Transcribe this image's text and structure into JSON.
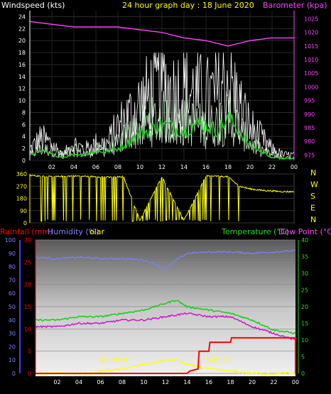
{
  "header": {
    "wind_label": "Windspeed (kts)",
    "title": "24 hour graph day : 18 June 2020",
    "baro_label": "Barometer (kpa)"
  },
  "compass": [
    "N",
    "W",
    "S",
    "E",
    "N"
  ],
  "bottom_legend": {
    "rainfall": "Rainfall (mm)",
    "humidity": "Humidity (%)",
    "solar": "olar",
    "temperature": "Temperature (°C)",
    "dewpoint": "Dew Point (°C)",
    "sunrise": "SunRise",
    "sunset": "SunSet"
  },
  "colors": {
    "wind_gust": "#ffffff",
    "wind_avg": "#c8f0c8",
    "wind_trend": "#22cc22",
    "barometer": "#ff44ff",
    "direction": "#ffff00",
    "humidity": "#7f7fff",
    "temperature": "#22cc22",
    "dewpoint": "#cc22cc",
    "rainfall": "#ff0000",
    "solar": "#ffff00"
  },
  "chart_data": [
    {
      "type": "line",
      "panel": "wind-barometer",
      "x_ticks": [
        "02",
        "04",
        "06",
        "08",
        "10",
        "12",
        "14",
        "16",
        "18",
        "20",
        "22",
        "00"
      ],
      "xlim": [
        0,
        24
      ],
      "y_left_ticks": [
        "0",
        "2",
        "4",
        "6",
        "8",
        "10",
        "12",
        "14",
        "16",
        "18",
        "20",
        "22",
        "24"
      ],
      "ylim_left": [
        0,
        25
      ],
      "y_right_ticks": [
        "975",
        "980",
        "985",
        "990",
        "995",
        "1000",
        "1005",
        "1010",
        "1015",
        "1020",
        "1025"
      ],
      "ylim_right": [
        973,
        1028
      ],
      "series": [
        {
          "key": "gust",
          "axis": "left",
          "x": [
            0,
            1,
            2,
            3,
            4,
            5,
            6,
            7,
            8,
            9,
            10,
            11,
            12,
            13,
            14,
            15,
            16,
            17,
            18,
            19,
            20,
            21,
            22,
            23,
            24
          ],
          "values": [
            2,
            4,
            3,
            1,
            3,
            2,
            3,
            3,
            6,
            8,
            10,
            12,
            14,
            12,
            13,
            12,
            11,
            12,
            15,
            10,
            6,
            4,
            2,
            1,
            1
          ]
        },
        {
          "key": "average",
          "axis": "left",
          "x": [
            0,
            1,
            2,
            3,
            4,
            5,
            6,
            7,
            8,
            9,
            10,
            11,
            12,
            13,
            14,
            15,
            16,
            17,
            18,
            19,
            20,
            21,
            22,
            23,
            24
          ],
          "values": [
            1,
            2,
            2,
            1,
            2,
            1,
            2,
            2,
            3,
            5,
            6,
            7,
            8,
            7,
            7,
            7,
            6,
            7,
            8,
            6,
            3,
            2,
            1,
            0.5,
            0.5
          ]
        },
        {
          "key": "trend",
          "axis": "left",
          "x": [
            0,
            1,
            2,
            3,
            4,
            5,
            6,
            7,
            8,
            9,
            10,
            11,
            12,
            13,
            14,
            15,
            16,
            17,
            18,
            19,
            20,
            21,
            22,
            23,
            24
          ],
          "values": [
            1,
            1.5,
            1,
            0.5,
            1,
            1,
            1.5,
            1.5,
            2,
            3,
            4.5,
            5,
            6,
            5.5,
            5,
            6,
            6,
            5,
            7,
            5,
            2.5,
            1.5,
            0.5,
            0.3,
            0.3
          ]
        },
        {
          "key": "barometer",
          "axis": "right",
          "x": [
            0,
            2,
            4,
            6,
            8,
            10,
            12,
            14,
            16,
            18,
            20,
            22,
            24
          ],
          "values": [
            1024,
            1023,
            1022,
            1022,
            1022,
            1021,
            1020,
            1018,
            1017,
            1015,
            1017,
            1018,
            1018
          ]
        }
      ]
    },
    {
      "type": "line",
      "panel": "wind-direction",
      "x_ticks": [
        "02",
        "04",
        "06",
        "08",
        "10",
        "12",
        "14",
        "16",
        "18",
        "20",
        "22",
        "00"
      ],
      "xlim": [
        0,
        24
      ],
      "y_ticks": [
        "0",
        "90",
        "180",
        "270",
        "360"
      ],
      "ylim": [
        0,
        360
      ],
      "series": [
        {
          "key": "direction",
          "x": [
            0,
            0.8,
            2,
            4,
            6,
            7.5,
            8.5,
            10,
            12,
            14,
            16,
            18,
            19,
            20,
            21,
            22,
            23,
            24
          ],
          "values": [
            350,
            345,
            340,
            345,
            340,
            335,
            340,
            20,
            340,
            20,
            345,
            340,
            270,
            250,
            240,
            235,
            230,
            230
          ]
        }
      ]
    },
    {
      "type": "line",
      "panel": "temp-humidity-rain-solar",
      "x_ticks": [
        "02",
        "04",
        "06",
        "08",
        "10",
        "12",
        "14",
        "16",
        "18",
        "20",
        "22",
        "00"
      ],
      "xlim": [
        0,
        24
      ],
      "y_blue_ticks": [
        "0",
        "10",
        "20",
        "30",
        "40",
        "50",
        "60",
        "70",
        "80",
        "90",
        "100"
      ],
      "ylim_humidity": [
        0,
        100
      ],
      "y_red_ticks": [
        "0",
        "5",
        "10",
        "15",
        "20",
        "25",
        "30"
      ],
      "ylim_rain": [
        0,
        30
      ],
      "y_right_ticks": [
        "0",
        "5",
        "10",
        "15",
        "20",
        "25",
        "30",
        "35",
        "40"
      ],
      "ylim_temp": [
        0,
        40
      ],
      "series": [
        {
          "key": "humidity",
          "axis": "humidity",
          "x": [
            0,
            2,
            4,
            6,
            8,
            10,
            11,
            12,
            13,
            14,
            16,
            18,
            20,
            22,
            24
          ],
          "values": [
            87,
            86,
            87,
            86,
            86,
            85,
            82,
            78,
            85,
            90,
            91,
            91,
            90,
            91,
            92
          ]
        },
        {
          "key": "temperature",
          "axis": "temp",
          "x": [
            0,
            2,
            4,
            6,
            8,
            10,
            12,
            13,
            14,
            16,
            18,
            20,
            22,
            24
          ],
          "values": [
            16,
            16,
            17,
            17,
            18,
            19,
            21,
            22,
            20,
            19,
            18,
            16,
            13,
            12
          ]
        },
        {
          "key": "dewpoint",
          "axis": "temp",
          "x": [
            0,
            2,
            4,
            6,
            8,
            10,
            12,
            14,
            16,
            18,
            20,
            22,
            24
          ],
          "values": [
            14,
            14,
            15,
            15,
            16,
            16,
            17,
            18,
            17,
            17,
            14,
            12,
            10
          ]
        },
        {
          "key": "rainfall",
          "axis": "rain",
          "x": [
            0,
            14,
            14.2,
            15,
            15.1,
            16,
            16.1,
            18,
            18.1,
            24,
            24
          ],
          "values": [
            0,
            0,
            0.5,
            1,
            5,
            5,
            7,
            7,
            8,
            8,
            0
          ]
        },
        {
          "key": "solar",
          "axis": "rain",
          "x": [
            0,
            5,
            6,
            8,
            10,
            11,
            12,
            13,
            14,
            15,
            16,
            18,
            20,
            22,
            24
          ],
          "values": [
            0,
            0,
            0.5,
            1,
            2,
            2.5,
            3,
            3,
            2,
            1.5,
            1,
            0.5,
            0,
            0,
            0
          ]
        }
      ]
    }
  ]
}
